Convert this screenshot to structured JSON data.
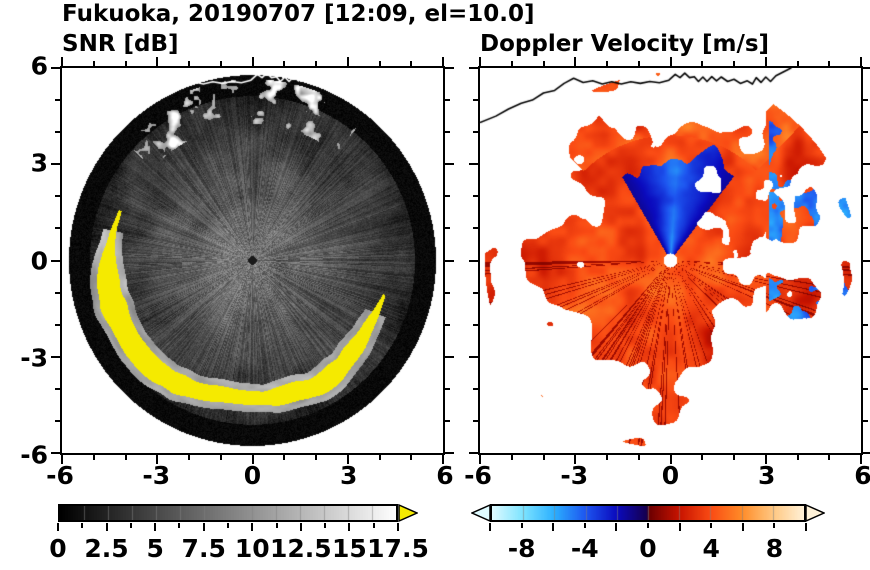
{
  "title": "Fukuoka, 20190707 [12:09, el=10.0]",
  "panels": {
    "snr": {
      "label": "SNR [dB]",
      "x_tick_labels": [
        "-6",
        "-3",
        "0",
        "3",
        "6"
      ],
      "y_tick_labels": [
        "6",
        "3",
        "0",
        "-3",
        "-6"
      ],
      "colorbar_tick_labels": [
        "0",
        "2.5",
        "5",
        "7.5",
        "10",
        "12.5",
        "15",
        "17.5"
      ]
    },
    "doppler": {
      "label": "Doppler Velocity [m/s]",
      "x_tick_labels": [
        "-6",
        "-3",
        "0",
        "3",
        "6"
      ],
      "colorbar_tick_labels": [
        "-8",
        "-4",
        "0",
        "4",
        "8"
      ]
    }
  },
  "overlay": {
    "coastline_color_left_panel": "#ffffff",
    "coastline_color_right_panel": "#000000",
    "coastline": [
      [
        -6.0,
        4.3
      ],
      [
        -5.5,
        4.5
      ],
      [
        -5.1,
        4.72
      ],
      [
        -4.7,
        4.9
      ],
      [
        -4.35,
        5.0
      ],
      [
        -4.0,
        5.22
      ],
      [
        -3.65,
        5.3
      ],
      [
        -3.35,
        5.52
      ],
      [
        -3.05,
        5.68
      ],
      [
        -2.75,
        5.55
      ],
      [
        -2.45,
        5.6
      ],
      [
        -2.15,
        5.5
      ],
      [
        -1.85,
        5.57
      ],
      [
        -1.55,
        5.5
      ],
      [
        -1.25,
        5.57
      ],
      [
        -0.95,
        5.52
      ],
      [
        -0.65,
        5.58
      ],
      [
        -0.35,
        5.54
      ],
      [
        -0.05,
        5.62
      ],
      [
        0.15,
        5.8
      ],
      [
        0.3,
        5.7
      ],
      [
        0.45,
        5.84
      ],
      [
        0.6,
        5.7
      ],
      [
        0.75,
        5.73
      ],
      [
        0.88,
        5.58
      ],
      [
        1.02,
        5.72
      ],
      [
        1.15,
        5.58
      ],
      [
        1.3,
        5.73
      ],
      [
        1.45,
        5.6
      ],
      [
        1.6,
        5.72
      ],
      [
        1.8,
        5.58
      ],
      [
        2.0,
        5.65
      ],
      [
        2.2,
        5.52
      ],
      [
        2.42,
        5.6
      ],
      [
        2.58,
        5.5
      ],
      [
        2.7,
        5.7
      ],
      [
        2.85,
        5.55
      ],
      [
        3.0,
        5.72
      ],
      [
        3.15,
        5.58
      ],
      [
        3.32,
        5.76
      ],
      [
        3.52,
        5.86
      ],
      [
        3.72,
        5.96
      ],
      [
        3.92,
        6.08
      ]
    ]
  },
  "chart_data": [
    {
      "type": "heatmap",
      "subtype": "radar-ppi-scan",
      "title": "SNR [dB]",
      "site": "Fukuoka",
      "datetime": "20190707 12:09",
      "elevation_deg": 10.0,
      "xlim": [
        -6,
        6
      ],
      "ylim": [
        -6,
        6
      ],
      "x_ticks": [
        -6,
        -3,
        0,
        3,
        6
      ],
      "y_ticks": [
        -6,
        -3,
        0,
        3,
        6
      ],
      "minor_tick_step": 1,
      "scan_radius": 5.75,
      "colorbar": {
        "range": [
          0,
          17.5
        ],
        "major_ticks": [
          0,
          2.5,
          5,
          7.5,
          10,
          12.5,
          15,
          17.5
        ],
        "minor_tick_step": 1.25,
        "major_tick_step": 2.5,
        "colormap": "grayscale (0 dB = black, 17.5 dB = white)",
        "over_color": "#f5ea00",
        "stops": [
          [
            0,
            "#000000"
          ],
          [
            17.5,
            "#ffffff"
          ]
        ]
      },
      "features": [
        "full 360-degree scan disc with black (low SNR) outer annulus out to radius ~5.75",
        "diffuse mid-gray echo with fine radial streaks filling the disc",
        "bright yellow over-range arc along the southern rim near radius 4-5",
        "white ground-clutter blobs along the northern rim",
        "white coastline overlay across the top of the panel",
        "small dark dot at the radar origin"
      ]
    },
    {
      "type": "heatmap",
      "subtype": "radar-ppi-scan",
      "title": "Doppler Velocity [m/s]",
      "xlim": [
        -6,
        6
      ],
      "ylim": [
        -6,
        6
      ],
      "x_ticks": [
        -6,
        -3,
        0,
        3,
        6
      ],
      "y_ticks": [
        -6,
        -3,
        0,
        3,
        6
      ],
      "minor_tick_step": 1,
      "colorbar": {
        "range": [
          -10,
          10
        ],
        "major_ticks": [
          -8,
          -4,
          0,
          4,
          8
        ],
        "minor_tick_step": 2,
        "major_tick_step": 4,
        "colormap": "diverging: pale cyan - blue - dark navy at 0- | dark red at 0+ - red - orange - pale orange",
        "arrow_ends": true,
        "stops": [
          [
            -10,
            "#dffbff"
          ],
          [
            -8,
            "#7de4ff"
          ],
          [
            -6,
            "#2cb0ff"
          ],
          [
            -4,
            "#1e56f0"
          ],
          [
            -2,
            "#0b0bbe"
          ],
          [
            -0.1,
            "#160050"
          ],
          [
            0.1,
            "#6e0000"
          ],
          [
            2,
            "#c81400"
          ],
          [
            4,
            "#fa4b14"
          ],
          [
            6,
            "#ff8c28"
          ],
          [
            8,
            "#ffc882"
          ],
          [
            10,
            "#fff2d8"
          ]
        ]
      },
      "features": [
        "blue wedge (negative velocity, toward radar) extending north from the center to radius ~4",
        "red-orange echoes (positive velocity, away from radar) over most of the scan",
        "dark-red radial streaks in the southern half",
        "scattered dark-blue patches along the eastern rim",
        "orange patches along the northern rim beyond the blue wedge",
        "ragged white gaps beyond radius ~4",
        "white dot at the radar origin",
        "black coastline overlay across the top of the panel"
      ]
    }
  ]
}
